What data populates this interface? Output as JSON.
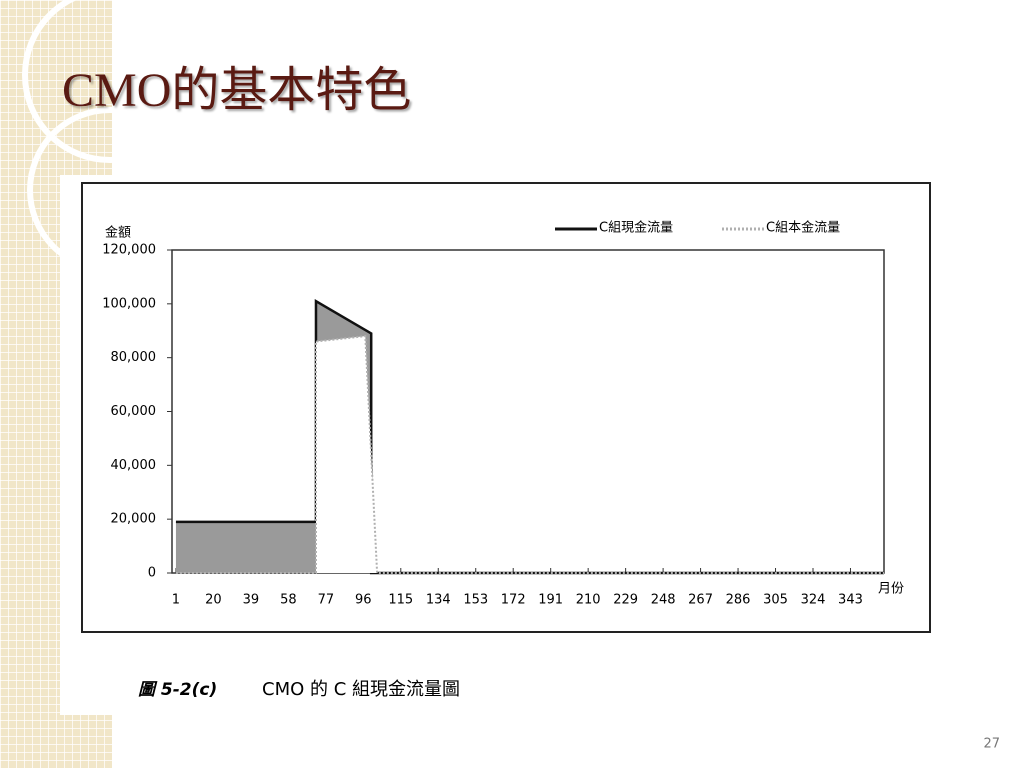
{
  "slide": {
    "title": "CMO的基本特色",
    "caption_figure": "圖 5-2(c)",
    "caption_text": "CMO 的 C 組現金流量圖",
    "page_number": "27"
  },
  "chart_data": {
    "type": "area",
    "ylabel": "金額",
    "xlabel": "月份",
    "xlim": [
      -1,
      360
    ],
    "xticks": [
      1,
      20,
      39,
      58,
      77,
      96,
      115,
      134,
      153,
      172,
      191,
      210,
      229,
      248,
      267,
      286,
      305,
      324,
      343
    ],
    "ylim": [
      0,
      120000
    ],
    "yticks": [
      0,
      {
        "value": 20000,
        "label": "20,000"
      },
      {
        "value": 40000,
        "label": "40,000"
      },
      {
        "value": 60000,
        "label": "60,000"
      },
      {
        "value": 80000,
        "label": "80,000"
      },
      {
        "value": 100000,
        "label": "100,000"
      },
      {
        "value": 120000,
        "label": "120,000"
      }
    ],
    "series": [
      {
        "name": "C組現金流量",
        "color": "#111111",
        "fill": "#9a9a9a",
        "x": [
          1,
          72,
          72,
          100,
          100,
          360
        ],
        "values": [
          19000,
          19000,
          101000,
          89000,
          0,
          0
        ]
      },
      {
        "name": "C組本金流量",
        "color": "#b0b0b0",
        "fill": "#ffffff",
        "x": [
          1,
          72,
          72,
          97,
          103,
          360
        ],
        "values": [
          0,
          0,
          86000,
          88000,
          0,
          0
        ]
      }
    ]
  }
}
